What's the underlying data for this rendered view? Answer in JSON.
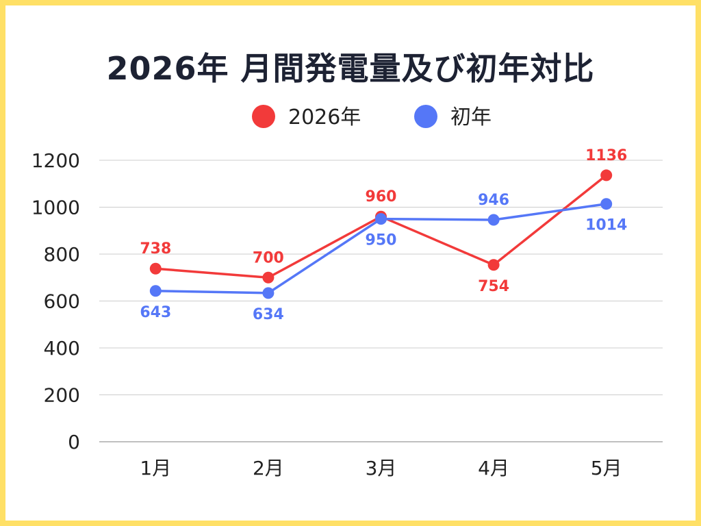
{
  "chart_data": {
    "type": "line",
    "title": "2026年 月間発電量及び初年対比",
    "categories": [
      "1月",
      "2月",
      "3月",
      "4月",
      "5月"
    ],
    "series": [
      {
        "name": "2026年",
        "color": "#f23a3a",
        "values": [
          738,
          700,
          960,
          754,
          1136
        ],
        "labels": [
          "738",
          "700",
          "960",
          "754",
          "1136"
        ]
      },
      {
        "name": "初年",
        "color": "#5577f7",
        "values": [
          643,
          634,
          950,
          946,
          1014
        ],
        "labels": [
          "643",
          "634",
          "950",
          "946",
          "1014"
        ]
      }
    ],
    "ylim": [
      0,
      1200
    ],
    "yticks": [
      "0",
      "200",
      "400",
      "600",
      "800",
      "1000",
      "1200"
    ],
    "grid": true,
    "legend_position": "top"
  },
  "colors": {
    "border": "#ffe066",
    "title": "#1d2233",
    "gridline": "#cccccc",
    "axis": "#aaaaaa"
  }
}
